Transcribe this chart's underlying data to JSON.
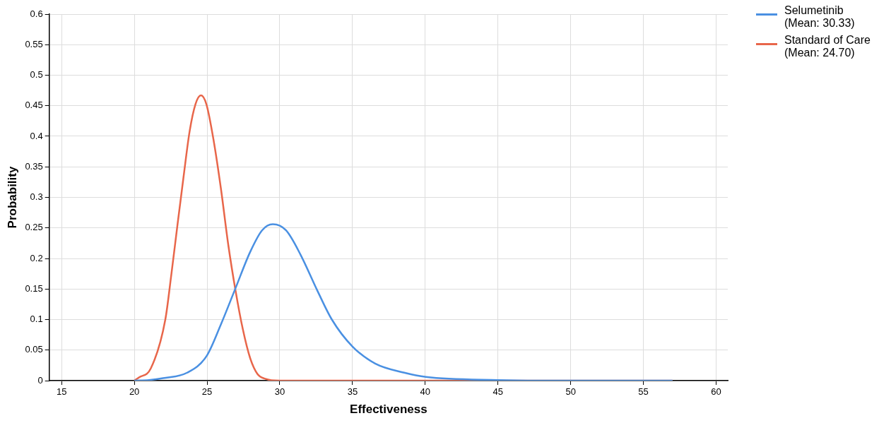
{
  "chart_data": {
    "type": "line",
    "xlabel": "Effectiveness",
    "ylabel": "Probability",
    "xlim": [
      14.15,
      60.8
    ],
    "xticks": [
      15,
      20,
      25,
      30,
      35,
      40,
      45,
      50,
      55,
      60
    ],
    "ylim": [
      0,
      0.6
    ],
    "yticks": [
      0,
      0.05,
      0.1,
      0.15,
      0.2,
      0.25,
      0.3,
      0.35,
      0.4,
      0.45,
      0.5,
      0.55,
      0.6
    ],
    "grid": true,
    "legend": "top right",
    "marker": "none",
    "line_style": "solid",
    "series": [
      {
        "name": "Selumetinib (Mean: 30.33)",
        "color": "#4a90e2",
        "x": [
          20,
          21,
          21.97,
          23.63,
          24.96,
          25.95,
          26.95,
          27.95,
          28.78,
          29.52,
          30.43,
          31.43,
          32.59,
          33.58,
          34.99,
          36.56,
          38.56,
          40.05,
          45,
          50,
          57
        ],
        "values": [
          0,
          0.001,
          0.004,
          0.013,
          0.04,
          0.092,
          0.151,
          0.21,
          0.246,
          0.256,
          0.246,
          0.206,
          0.147,
          0.1,
          0.056,
          0.028,
          0.013,
          0.006,
          0.001,
          0,
          0
        ]
      },
      {
        "name": "Standard of Care (Mean: 24.70)",
        "color": "#e8664a",
        "x": [
          20,
          20.3,
          21.13,
          22.13,
          22.55,
          22.96,
          23.38,
          23.8,
          24.21,
          24.58,
          24.96,
          25.46,
          25.96,
          26.46,
          26.96,
          27.46,
          27.96,
          28.46,
          29,
          30,
          57
        ],
        "values": [
          0,
          0.005,
          0.02,
          0.1,
          0.175,
          0.254,
          0.333,
          0.408,
          0.453,
          0.467,
          0.452,
          0.392,
          0.313,
          0.222,
          0.147,
          0.084,
          0.037,
          0.011,
          0.003,
          0,
          0
        ]
      }
    ]
  }
}
